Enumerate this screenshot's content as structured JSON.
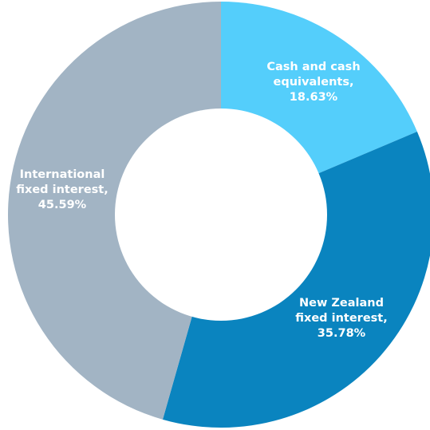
{
  "chart_data": {
    "type": "pie",
    "donut": true,
    "slices": [
      {
        "label_lines": [
          "Cash and cash",
          "equivalents,",
          "18.63%"
        ],
        "value": 18.63,
        "color": "#54CEFB"
      },
      {
        "label_lines": [
          "New Zealand",
          "fixed interest,",
          "35.78%"
        ],
        "value": 35.78,
        "color": "#0A84BF"
      },
      {
        "label_lines": [
          "International",
          "fixed interest,",
          "45.59%"
        ],
        "value": 45.59,
        "color": "#A2B4C4"
      }
    ]
  }
}
